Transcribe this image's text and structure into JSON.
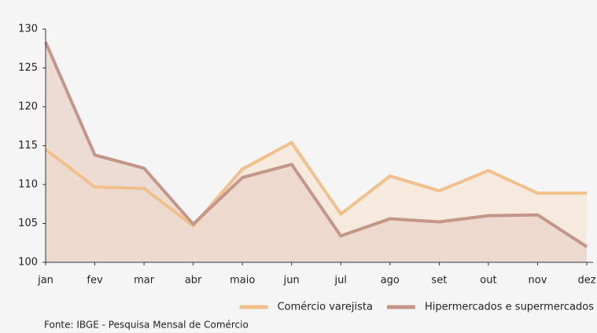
{
  "chart_data": {
    "type": "area",
    "categories": [
      "jan",
      "fev",
      "mar",
      "abr",
      "maio",
      "jun",
      "jul",
      "ago",
      "set",
      "out",
      "nov",
      "dez"
    ],
    "series": [
      {
        "name": "Comércio varejista",
        "color": "#f2c08a",
        "fill": "#f5e4d6",
        "values": [
          114.5,
          109.7,
          109.5,
          104.7,
          112,
          115.4,
          106.2,
          111.1,
          109.2,
          111.8,
          108.9,
          108.9
        ]
      },
      {
        "name": "Hipermercados e supermercados",
        "color": "#c4968a",
        "fill": "#e9d3c8",
        "values": [
          128.3,
          113.8,
          112.1,
          104.9,
          110.9,
          112.6,
          103.4,
          105.6,
          105.2,
          106,
          106.1,
          102
        ]
      }
    ],
    "ylim": [
      100,
      130
    ],
    "yticks": [
      100,
      105,
      110,
      115,
      120,
      125,
      130
    ],
    "legend": "bottom-right",
    "source": "Fonte: IBGE - Pesquisa Mensal de Comércio"
  }
}
